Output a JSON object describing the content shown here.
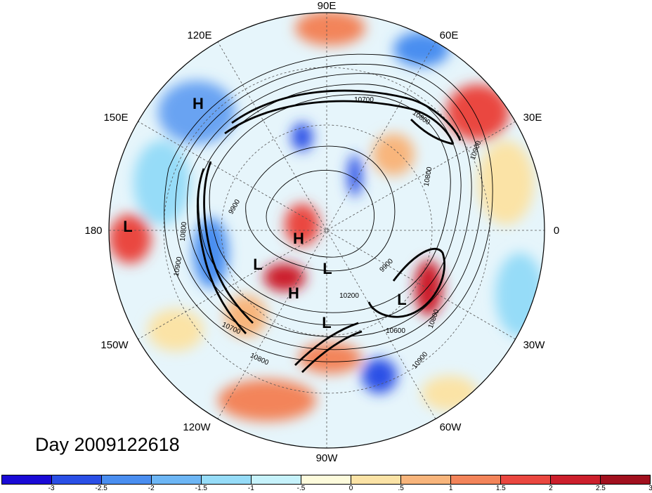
{
  "title": "Day 2009122618",
  "longitude_labels": [
    "90E",
    "60E",
    "30E",
    "0",
    "30W",
    "60W",
    "90W",
    "120W",
    "150W",
    "180",
    "150E",
    "120E"
  ],
  "pressure_centers": [
    "H",
    "L",
    "H",
    "L",
    "L",
    "H",
    "L",
    "L"
  ],
  "contour_labels": [
    "10700",
    "10800",
    "10900",
    "9900",
    "10800",
    "10900",
    "10700",
    "10800",
    "10600",
    "10800",
    "10900",
    "10200",
    "9900",
    "10800"
  ],
  "colorbar": {
    "colors": [
      "#1a0ad6",
      "#2a4fe6",
      "#4a8ef0",
      "#6db6f5",
      "#96dcf8",
      "#c6f2fb",
      "#fdfbdc",
      "#fbe3a6",
      "#f8b57c",
      "#f3845a",
      "#ea4740",
      "#cc1f2c",
      "#a1101e"
    ],
    "labels": [
      "-3",
      "-2.5",
      "-2",
      "-1.5",
      "-1",
      "-.5",
      "0",
      ".5",
      "1",
      "1.5",
      "2",
      "2.5",
      "3"
    ]
  }
}
